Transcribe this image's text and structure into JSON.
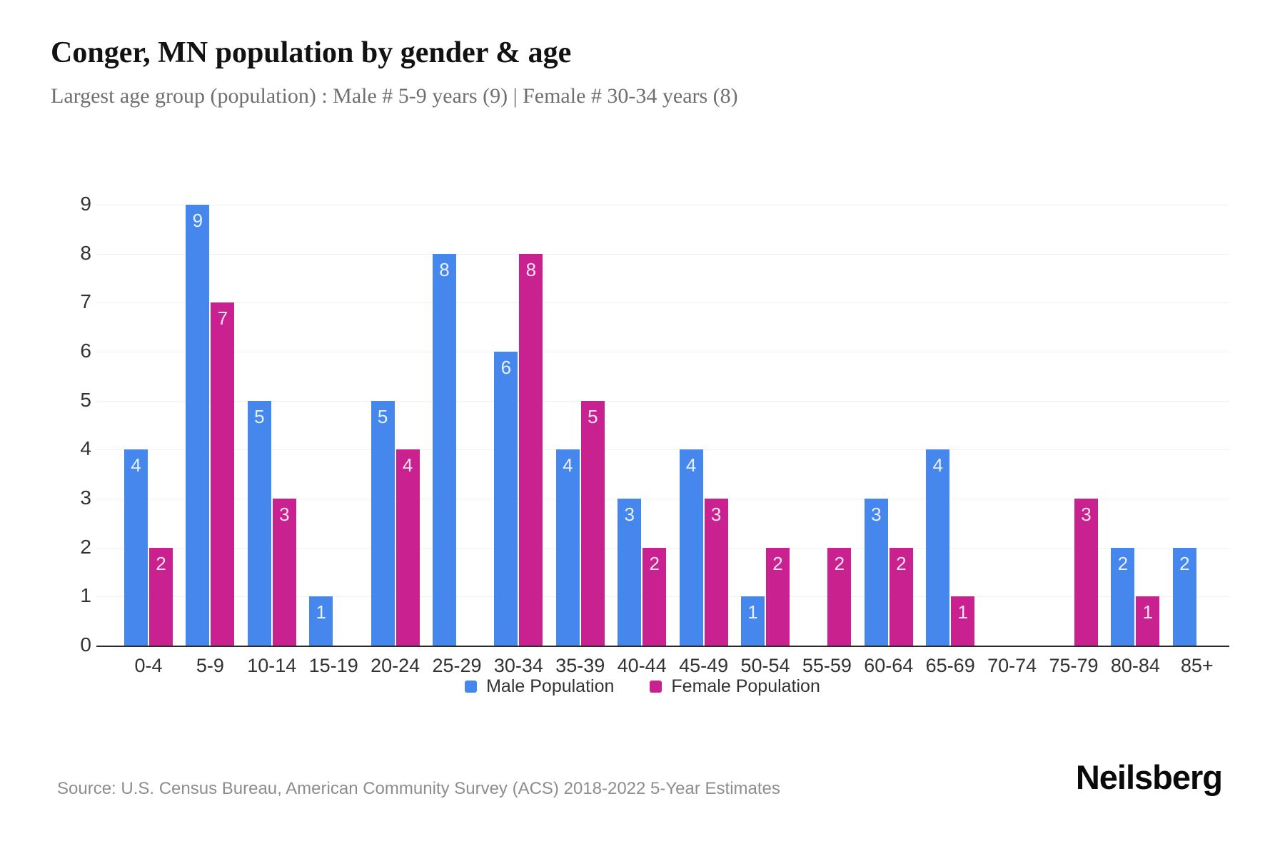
{
  "header": {
    "title": "Conger, MN population by gender & age",
    "subtitle": "Largest age group (population) : Male # 5-9 years (9) | Female # 30-34 years (8)"
  },
  "chart_data": {
    "type": "bar",
    "title": "Conger, MN population by gender & age",
    "categories": [
      "0-4",
      "5-9",
      "10-14",
      "15-19",
      "20-24",
      "25-29",
      "30-34",
      "35-39",
      "40-44",
      "45-49",
      "50-54",
      "55-59",
      "60-64",
      "65-69",
      "70-74",
      "75-79",
      "80-84",
      "85+"
    ],
    "series": [
      {
        "name": "Male Population",
        "color": "#4687ee",
        "values": [
          4,
          9,
          5,
          1,
          5,
          8,
          6,
          4,
          3,
          4,
          1,
          0,
          3,
          4,
          0,
          0,
          2,
          2
        ]
      },
      {
        "name": "Female Population",
        "color": "#c92190",
        "values": [
          2,
          7,
          3,
          0,
          4,
          0,
          8,
          5,
          2,
          3,
          2,
          2,
          2,
          1,
          0,
          3,
          1,
          0
        ]
      }
    ],
    "xlabel": "",
    "ylabel": "",
    "ylim": [
      0,
      9
    ],
    "yticks": [
      0,
      1,
      2,
      3,
      4,
      5,
      6,
      7,
      8,
      9
    ],
    "grid": "horizontal",
    "legend_position": "bottom",
    "value_labels": "inside-top"
  },
  "footer": {
    "source": "Source: U.S. Census Bureau, American Community Survey (ACS) 2018-2022 5-Year Estimates",
    "logo": "Neilsberg"
  }
}
